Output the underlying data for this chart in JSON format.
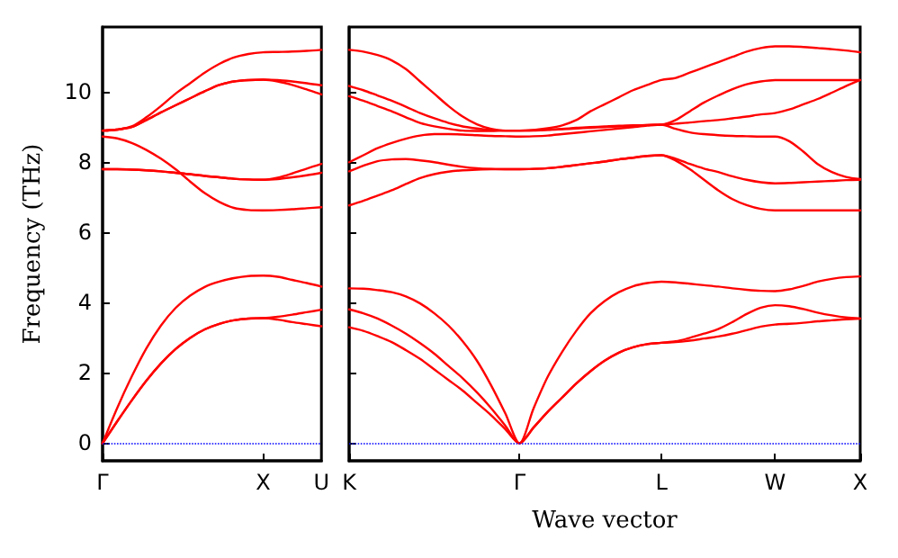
{
  "chart_data": [
    {
      "type": "line",
      "ylabel": "Frequency (THz)",
      "ylim": [
        -0.5,
        11.85
      ],
      "yticks": [
        0,
        2,
        4,
        6,
        8,
        10
      ],
      "marker": "none",
      "line_style": "solid",
      "categories": [
        "Γ",
        null,
        null,
        null,
        null,
        null,
        null,
        null,
        null,
        null,
        null,
        "X",
        null,
        null,
        null,
        "U"
      ],
      "ref_lines": [
        {
          "axis": "y",
          "value": 0,
          "color": "#0000ff",
          "line_style": "dotted"
        }
      ],
      "series": [
        {
          "color": "#ff0000",
          "values": [
            0,
            1.0,
            1.9,
            2.7,
            3.35,
            3.85,
            4.2,
            4.45,
            4.6,
            4.7,
            4.76,
            4.77,
            4.74,
            4.65,
            4.56,
            4.46
          ]
        },
        {
          "color": "#ff0000",
          "values": [
            0,
            0.62,
            1.22,
            1.78,
            2.27,
            2.68,
            3.0,
            3.24,
            3.4,
            3.5,
            3.55,
            3.56,
            3.6,
            3.66,
            3.73,
            3.8
          ]
        },
        {
          "color": "#ff0000",
          "values": [
            0,
            0.62,
            1.22,
            1.78,
            2.27,
            2.68,
            3.0,
            3.24,
            3.4,
            3.5,
            3.55,
            3.56,
            3.52,
            3.45,
            3.39,
            3.33
          ]
        },
        {
          "color": "#ff0000",
          "values": [
            8.9,
            8.93,
            9.02,
            9.28,
            9.6,
            9.95,
            10.25,
            10.55,
            10.8,
            10.98,
            11.08,
            11.13,
            11.14,
            11.15,
            11.17,
            11.2
          ]
        },
        {
          "color": "#ff0000",
          "values": [
            8.9,
            8.93,
            9.0,
            9.2,
            9.42,
            9.62,
            9.82,
            10.02,
            10.2,
            10.3,
            10.34,
            10.35,
            10.34,
            10.3,
            10.25,
            10.19
          ]
        },
        {
          "color": "#ff0000",
          "values": [
            8.9,
            8.93,
            9.0,
            9.2,
            9.42,
            9.62,
            9.82,
            10.02,
            10.2,
            10.3,
            10.34,
            10.35,
            10.3,
            10.2,
            10.07,
            9.93
          ]
        },
        {
          "color": "#ff0000",
          "values": [
            8.73,
            8.68,
            8.55,
            8.35,
            8.1,
            7.8,
            7.45,
            7.12,
            6.87,
            6.7,
            6.64,
            6.63,
            6.64,
            6.66,
            6.69,
            6.72
          ]
        },
        {
          "color": "#ff0000",
          "values": [
            7.8,
            7.8,
            7.79,
            7.77,
            7.74,
            7.7,
            7.66,
            7.61,
            7.57,
            7.53,
            7.51,
            7.5,
            7.52,
            7.57,
            7.63,
            7.7
          ]
        },
        {
          "color": "#ff0000",
          "values": [
            7.8,
            7.8,
            7.79,
            7.77,
            7.74,
            7.7,
            7.66,
            7.61,
            7.57,
            7.53,
            7.51,
            7.5,
            7.56,
            7.68,
            7.82,
            7.95
          ]
        }
      ]
    },
    {
      "type": "line",
      "xlabel": "Wave vector",
      "ylim": [
        -0.5,
        11.85
      ],
      "yticks": [
        0,
        2,
        4,
        6,
        8,
        10
      ],
      "tick_labels": "x",
      "marker": "none",
      "line_style": "solid",
      "categories": [
        "K",
        null,
        null,
        null,
        null,
        null,
        null,
        null,
        null,
        null,
        null,
        null,
        "Γ",
        null,
        null,
        null,
        null,
        null,
        null,
        null,
        null,
        null,
        "L",
        null,
        null,
        null,
        null,
        null,
        null,
        null,
        "W",
        null,
        null,
        null,
        null,
        null,
        "X"
      ],
      "ref_lines": [
        {
          "axis": "y",
          "value": 0,
          "color": "#0000ff",
          "line_style": "dotted"
        }
      ],
      "series": [
        {
          "color": "#ff0000",
          "values": [
            4.41,
            4.4,
            4.36,
            4.3,
            4.18,
            3.98,
            3.7,
            3.35,
            2.9,
            2.35,
            1.65,
            0.85,
            0,
            1.0,
            1.9,
            2.6,
            3.2,
            3.7,
            4.05,
            4.3,
            4.47,
            4.56,
            4.6,
            4.58,
            4.54,
            4.5,
            4.46,
            4.41,
            4.37,
            4.34,
            4.33,
            4.38,
            4.48,
            4.6,
            4.68,
            4.73,
            4.75
          ]
        },
        {
          "color": "#ff0000",
          "values": [
            3.81,
            3.7,
            3.55,
            3.35,
            3.12,
            2.85,
            2.55,
            2.2,
            1.85,
            1.45,
            1.0,
            0.5,
            0,
            0.45,
            0.9,
            1.3,
            1.7,
            2.05,
            2.35,
            2.58,
            2.73,
            2.82,
            2.86,
            2.9,
            3.0,
            3.12,
            3.25,
            3.45,
            3.68,
            3.86,
            3.93,
            3.9,
            3.82,
            3.72,
            3.64,
            3.58,
            3.55
          ]
        },
        {
          "color": "#ff0000",
          "values": [
            3.3,
            3.2,
            3.05,
            2.88,
            2.65,
            2.4,
            2.1,
            1.8,
            1.5,
            1.15,
            0.8,
            0.4,
            0,
            0.45,
            0.9,
            1.3,
            1.7,
            2.05,
            2.35,
            2.58,
            2.73,
            2.82,
            2.86,
            2.88,
            2.92,
            2.98,
            3.04,
            3.12,
            3.22,
            3.32,
            3.38,
            3.4,
            3.43,
            3.47,
            3.5,
            3.53,
            3.55
          ]
        },
        {
          "color": "#ff0000",
          "values": [
            11.2,
            11.15,
            11.05,
            10.9,
            10.65,
            10.3,
            9.95,
            9.6,
            9.3,
            9.08,
            8.95,
            8.9,
            8.9,
            8.92,
            8.97,
            9.05,
            9.2,
            9.45,
            9.65,
            9.85,
            10.05,
            10.2,
            10.34,
            10.4,
            10.55,
            10.7,
            10.85,
            11.0,
            11.15,
            11.25,
            11.3,
            11.3,
            11.28,
            11.25,
            11.22,
            11.18,
            11.13
          ]
        },
        {
          "color": "#ff0000",
          "values": [
            10.17,
            10.05,
            9.9,
            9.75,
            9.58,
            9.4,
            9.25,
            9.12,
            9.02,
            8.96,
            8.92,
            8.9,
            8.9,
            8.91,
            8.93,
            8.95,
            8.98,
            9.0,
            9.02,
            9.04,
            9.05,
            9.06,
            9.07,
            9.2,
            9.45,
            9.7,
            9.9,
            10.08,
            10.22,
            10.3,
            10.34,
            10.34,
            10.34,
            10.34,
            10.34,
            10.34,
            10.34
          ]
        },
        {
          "color": "#ff0000",
          "values": [
            9.88,
            9.75,
            9.6,
            9.45,
            9.28,
            9.12,
            9.02,
            8.95,
            8.9,
            8.89,
            8.89,
            8.9,
            8.9,
            8.9,
            8.92,
            8.94,
            8.96,
            8.98,
            9.0,
            9.02,
            9.04,
            9.06,
            9.07,
            9.1,
            9.13,
            9.17,
            9.2,
            9.25,
            9.3,
            9.36,
            9.4,
            9.5,
            9.65,
            9.8,
            9.98,
            10.17,
            10.34
          ]
        },
        {
          "color": "#ff0000",
          "values": [
            8.0,
            8.2,
            8.4,
            8.55,
            8.67,
            8.76,
            8.8,
            8.8,
            8.79,
            8.77,
            8.75,
            8.74,
            8.73,
            8.74,
            8.76,
            8.8,
            8.84,
            8.88,
            8.92,
            8.96,
            9.0,
            9.04,
            9.07,
            8.95,
            8.85,
            8.8,
            8.77,
            8.75,
            8.74,
            8.73,
            8.73,
            8.6,
            8.3,
            7.95,
            7.72,
            7.58,
            7.52
          ]
        },
        {
          "color": "#ff0000",
          "values": [
            7.74,
            7.9,
            8.03,
            8.08,
            8.09,
            8.05,
            8.0,
            7.93,
            7.87,
            7.83,
            7.81,
            7.8,
            7.8,
            7.81,
            7.83,
            7.87,
            7.92,
            7.97,
            8.02,
            8.08,
            8.13,
            8.18,
            8.2,
            8.1,
            7.95,
            7.82,
            7.72,
            7.6,
            7.5,
            7.43,
            7.4,
            7.41,
            7.43,
            7.45,
            7.47,
            7.49,
            7.5
          ]
        },
        {
          "color": "#ff0000",
          "values": [
            6.77,
            6.9,
            7.05,
            7.2,
            7.38,
            7.55,
            7.66,
            7.73,
            7.77,
            7.79,
            7.8,
            7.8,
            7.8,
            7.81,
            7.83,
            7.87,
            7.92,
            7.97,
            8.02,
            8.08,
            8.13,
            8.18,
            8.2,
            8.05,
            7.8,
            7.5,
            7.2,
            6.95,
            6.78,
            6.67,
            6.63,
            6.63,
            6.63,
            6.63,
            6.63,
            6.63,
            6.63
          ]
        }
      ]
    }
  ]
}
